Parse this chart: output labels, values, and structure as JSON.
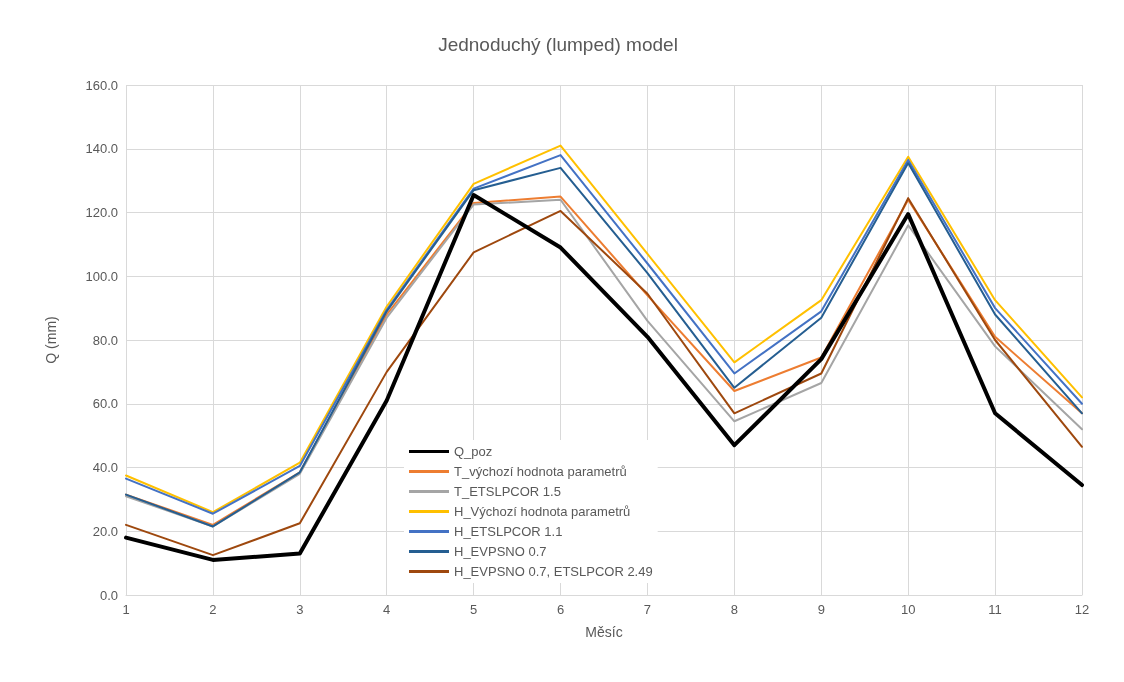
{
  "chart_data": {
    "type": "line",
    "title": "Jednoduchý (lumped) model",
    "xlabel": "Měsíc",
    "ylabel": "Q (mm)",
    "x": [
      1,
      2,
      3,
      4,
      5,
      6,
      7,
      8,
      9,
      10,
      11,
      12
    ],
    "xlim": [
      1,
      12
    ],
    "xticks": [
      1,
      2,
      3,
      4,
      5,
      6,
      7,
      8,
      9,
      10,
      11,
      12
    ],
    "ylim": [
      0,
      160
    ],
    "yticks": [
      {
        "value": 0,
        "label": "0.0"
      },
      {
        "value": 20,
        "label": "20.0"
      },
      {
        "value": 40,
        "label": "40.0"
      },
      {
        "value": 60,
        "label": "60.0"
      },
      {
        "value": 80,
        "label": "80.0"
      },
      {
        "value": 100,
        "label": "100.0"
      },
      {
        "value": 120,
        "label": "120.0"
      },
      {
        "value": 140,
        "label": "140.0"
      },
      {
        "value": 160,
        "label": "160.0"
      }
    ],
    "grid": true,
    "legend": "bottom",
    "marker": "none",
    "line_style": "solid",
    "series": [
      {
        "name": "Q_poz",
        "color": "#000000",
        "values": [
          18,
          11,
          13,
          61,
          125.5,
          109,
          81,
          47,
          74,
          119.5,
          57,
          34.5
        ]
      },
      {
        "name": "T_výchozí hodnota parametrů",
        "color": "#ed7d31",
        "values": [
          31.5,
          22,
          38.5,
          88,
          123,
          125,
          94,
          64,
          74.5,
          124,
          81,
          57
        ]
      },
      {
        "name": "T_ETSLPCOR 1.5",
        "color": "#a5a5a5",
        "values": [
          31,
          21.5,
          38,
          87,
          122.5,
          124,
          86,
          54.5,
          66.5,
          116,
          78,
          52
        ]
      },
      {
        "name": "H_Výchozí hodnota parametrů",
        "color": "#ffc000",
        "values": [
          37.5,
          26,
          41.5,
          90.5,
          129,
          141,
          107,
          73,
          92.5,
          137.5,
          92.5,
          62
        ]
      },
      {
        "name": "H_ETSLPCOR 1.1",
        "color": "#4472c4",
        "values": [
          36.5,
          25.5,
          40.5,
          89.5,
          127.5,
          138,
          104,
          69.5,
          89,
          136.5,
          90,
          60
        ]
      },
      {
        "name": "H_EVPSNO 0.7",
        "color": "#255e91",
        "values": [
          31.5,
          21.5,
          38.5,
          89,
          127,
          134,
          101,
          65,
          87,
          135.5,
          88,
          57
        ]
      },
      {
        "name": "H_EVPSNO 0.7, ETSLPCOR 2.49",
        "color": "#9e480e",
        "values": [
          22,
          12.5,
          22.5,
          70,
          107.5,
          120.5,
          94.5,
          57,
          69.5,
          124.5,
          80,
          46.5
        ]
      }
    ]
  }
}
